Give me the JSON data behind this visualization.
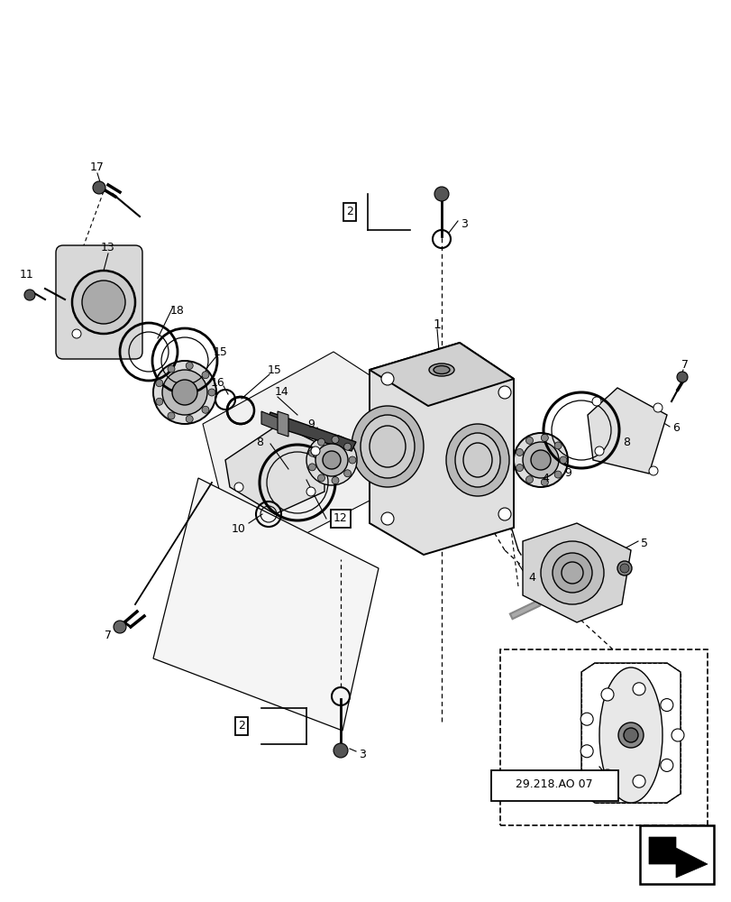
{
  "bg_color": "#ffffff",
  "line_color": "#000000",
  "fig_width": 8.12,
  "fig_height": 10.0,
  "dpi": 100,
  "ref_label": "29.218.AO 07",
  "gray_light": "#e8e8e8",
  "gray_mid": "#c8c8c8",
  "gray_dark": "#888888",
  "gray_face": "#d4d4d4"
}
